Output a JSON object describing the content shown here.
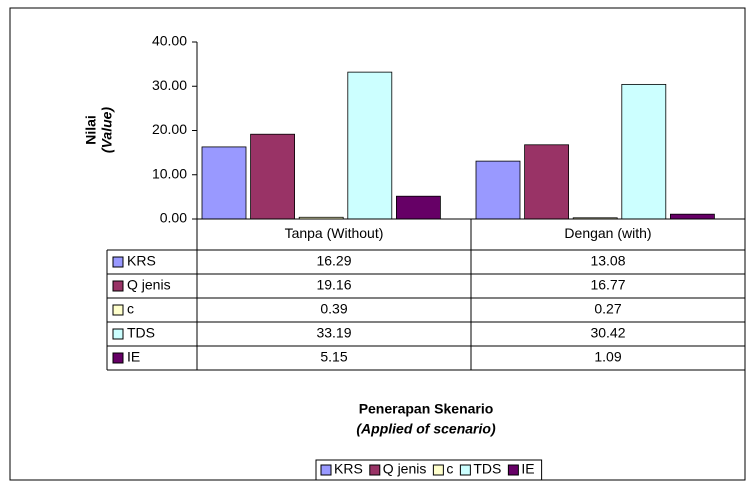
{
  "chart_data": {
    "type": "bar",
    "ylabel": [
      "Nilai",
      "(Value)"
    ],
    "xlabel": [
      "Penerapan Skenario",
      "(Applied of scenario)"
    ],
    "categories": [
      "Tanpa (Without)",
      "Dengan (with)"
    ],
    "series": [
      {
        "name": "KRS",
        "color": "#9999ff",
        "values": [
          16.29,
          13.08
        ]
      },
      {
        "name": "Q jenis",
        "color": "#993366",
        "values": [
          19.16,
          16.77
        ]
      },
      {
        "name": "c",
        "color": "#ffffcc",
        "values": [
          0.39,
          0.27
        ]
      },
      {
        "name": "TDS",
        "color": "#ccffff",
        "values": [
          33.19,
          30.42
        ]
      },
      {
        "name": "IE",
        "color": "#660066",
        "values": [
          5.15,
          1.09
        ]
      }
    ],
    "ylim": [
      0,
      40
    ],
    "yticks": [
      {
        "value": 0,
        "label": "0.00"
      },
      {
        "value": 10,
        "label": "10.00"
      },
      {
        "value": 20,
        "label": "20.00"
      },
      {
        "value": 30,
        "label": "30.00"
      },
      {
        "value": 40,
        "label": "40.00"
      }
    ],
    "legend": "bottom"
  }
}
